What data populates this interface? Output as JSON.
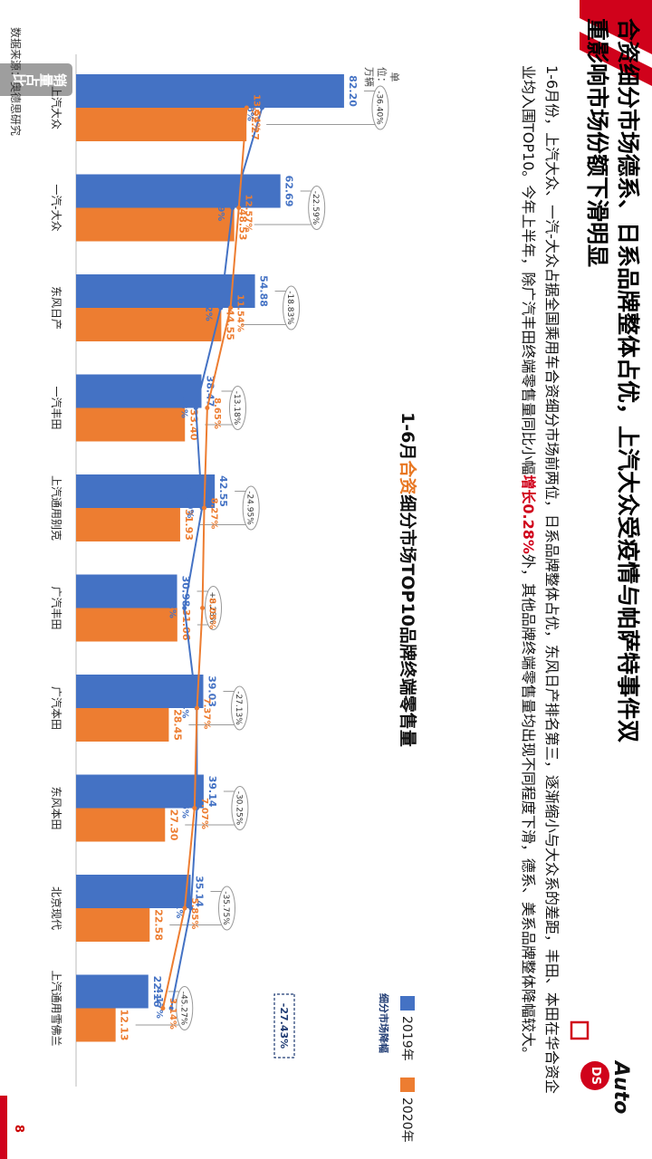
{
  "slide": {
    "title_line1": "合资细分市场德系、日系品牌整体占优，上汽大众受疫情与帕萨特事件双",
    "title_line2": "重影响市场份额下滑明显",
    "paragraph_before": "1-6月份，上汽大众、一汽-大众占据全国乘用车合资细分市场前两位，日系品牌整体占优，东风日产排名第三，逐渐缩小与大众系的差距，丰田、本田在华合资企业均入围TOP10。今年上半年，除广汽丰田终端零售量同比小幅",
    "paragraph_highlight": "增长0.28%",
    "paragraph_after": "外，其他品牌终端零售量均出现不同程度下滑，德系、美系品牌整体降幅较大。",
    "tab_label": "销量占比",
    "unit_label": "单位：万辆",
    "source": "数据来源：奥德思研究",
    "page_number": "8",
    "logo_text": "Auto",
    "logo_badge": "DS",
    "colors": {
      "accent_red": "#d0021b",
      "series_2019": "#4472c4",
      "series_2020": "#ed7d31"
    }
  },
  "chart_data": {
    "type": "bar",
    "title_prefix": "1-6月",
    "title_highlight": "合资",
    "title_suffix": "细分市场TOP10品牌终端零售量",
    "unit": "单位：万辆",
    "categories": [
      "上汽大众",
      "一汽-大众",
      "东风日产",
      "一汽丰田",
      "上汽通用别克",
      "广汽丰田",
      "广汽本田",
      "东风本田",
      "北京现代",
      "上汽通用雪佛兰"
    ],
    "series": [
      {
        "name": "2019年",
        "values": [
          82.2,
          62.69,
          54.88,
          38.47,
          42.55,
          30.98,
          39.03,
          39.14,
          35.14,
          22.16
        ],
        "color": "#4472c4"
      },
      {
        "name": "2020年",
        "values": [
          52.27,
          48.53,
          44.55,
          33.4,
          31.93,
          31.06,
          28.45,
          27.3,
          22.58,
          12.13
        ],
        "color": "#ed7d31"
      }
    ],
    "value_labels_2019": [
      "82.20",
      "62.69",
      "54.88",
      "38.47",
      "42.55",
      "30.98",
      "39.03",
      "39.14",
      "35.14",
      "22.16"
    ],
    "value_labels_2020": [
      "52.27",
      "48.53",
      "44.55",
      "33.40",
      "31.93",
      "31.06",
      "28.45",
      "27.30",
      "22.58",
      "12.13"
    ],
    "growth_labels": [
      "-36.40%",
      "-22.59%",
      "-18.83%",
      "-13.18%",
      "-24.95%",
      "+0.28%",
      "-27.13%",
      "-30.25%",
      "-35.75%",
      "-45.27%"
    ],
    "share_series": [
      {
        "name": "2019年",
        "values": [
          15.46,
          11.79,
          10.32,
          7.23,
          8.0,
          5.82,
          7.34,
          7.36,
          6.61,
          4.17
        ],
        "labels": [
          "15.46%",
          "11.79%",
          "10.32%",
          "7.23%",
          "8.00%",
          "5.82%",
          "7.34%",
          "7.36%",
          "6.61%",
          "4.17%"
        ],
        "color": "#4472c4"
      },
      {
        "name": "2020年",
        "values": [
          13.54,
          12.57,
          11.54,
          8.65,
          8.27,
          8.05,
          7.37,
          7.07,
          5.85,
          3.14
        ],
        "labels": [
          "13.54%",
          "12.57%",
          "11.54%",
          "8.65%",
          "8.27%",
          "8.05%",
          "7.37%",
          "7.07%",
          "5.85%",
          "3.14%"
        ],
        "color": "#ed7d31"
      }
    ],
    "segment_decline_label": "细分市场降幅",
    "segment_decline_value": "-27.43%",
    "legend": [
      "2019年",
      "2020年"
    ],
    "ylim": [
      0,
      90
    ]
  }
}
